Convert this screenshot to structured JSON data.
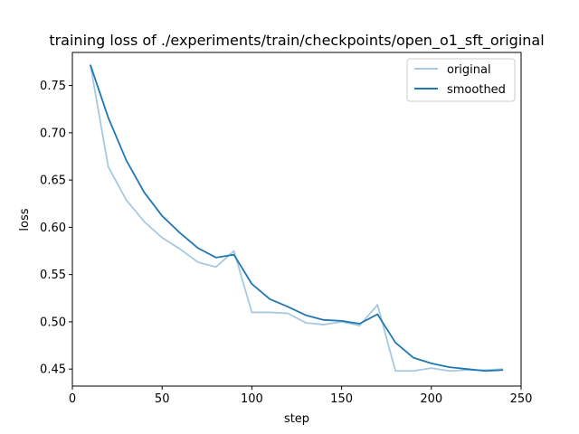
{
  "chart_data": {
    "type": "line",
    "title": "training loss of ./experiments/train/checkpoints/open_o1_sft_original",
    "xlabel": "step",
    "ylabel": "loss",
    "xlim": [
      0,
      250
    ],
    "ylim": [
      0.432,
      0.785
    ],
    "xticks": [
      0,
      50,
      100,
      150,
      200,
      250
    ],
    "yticks": [
      0.45,
      0.5,
      0.55,
      0.6,
      0.65,
      0.7,
      0.75
    ],
    "ytick_labels": [
      "0.45",
      "0.50",
      "0.55",
      "0.60",
      "0.65",
      "0.70",
      "0.75"
    ],
    "grid": false,
    "legend_position": "top-right",
    "x": [
      10,
      20,
      30,
      40,
      50,
      60,
      70,
      80,
      90,
      100,
      110,
      120,
      130,
      140,
      150,
      160,
      170,
      180,
      190,
      200,
      210,
      220,
      230,
      240
    ],
    "series": [
      {
        "name": "original",
        "color": "#a6c9e2",
        "values": [
          0.772,
          0.664,
          0.629,
          0.606,
          0.589,
          0.577,
          0.563,
          0.558,
          0.575,
          0.51,
          0.51,
          0.509,
          0.499,
          0.497,
          0.5,
          0.496,
          0.518,
          0.448,
          0.448,
          0.451,
          0.448,
          0.449,
          0.449,
          0.45
        ]
      },
      {
        "name": "smoothed",
        "color": "#1f77b4",
        "values": [
          0.772,
          0.716,
          0.671,
          0.637,
          0.612,
          0.594,
          0.578,
          0.568,
          0.571,
          0.54,
          0.524,
          0.516,
          0.507,
          0.502,
          0.501,
          0.498,
          0.508,
          0.478,
          0.462,
          0.456,
          0.452,
          0.45,
          0.448,
          0.449
        ]
      }
    ]
  }
}
